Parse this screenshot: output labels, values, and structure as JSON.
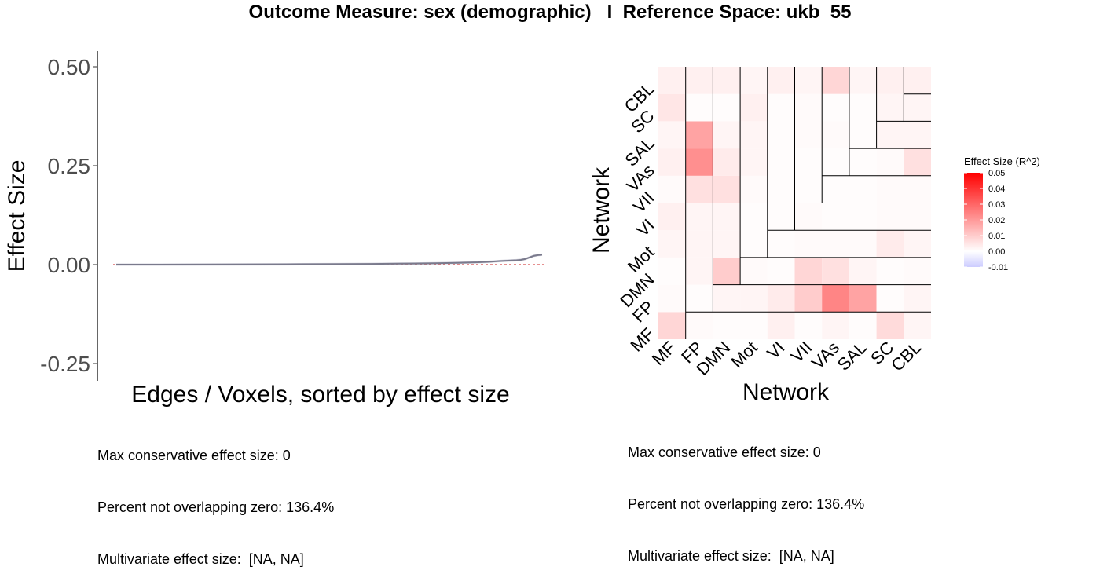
{
  "title": "Outcome Measure: sex (demographic)   I  Reference Space: ukb_55",
  "chart_data": [
    {
      "type": "line",
      "xlabel": "Edges / Voxels, sorted by effect size",
      "ylabel": "Effect Size",
      "ylim": [
        -0.28,
        0.53
      ],
      "yticks": [
        0.5,
        0.25,
        0.0,
        -0.25
      ],
      "ytick_labels": [
        "0.50",
        "0.25",
        "0.00",
        "-0.25"
      ],
      "reference_line": {
        "y": 0,
        "color": "#cc2222",
        "style": "dashed"
      },
      "series": [
        {
          "x": [
            0,
            0.1,
            0.2,
            0.3,
            0.4,
            0.5,
            0.6,
            0.7,
            0.75,
            0.8,
            0.85,
            0.88,
            0.9,
            0.92,
            0.94,
            0.95,
            0.96,
            0.97,
            0.98,
            0.99,
            1.0
          ],
          "values": [
            0,
            0,
            0.0002,
            0.0005,
            0.0008,
            0.0012,
            0.0018,
            0.0028,
            0.0035,
            0.0045,
            0.006,
            0.0075,
            0.009,
            0.01,
            0.011,
            0.012,
            0.014,
            0.018,
            0.022,
            0.024,
            0.025
          ],
          "band_halfwidth": 0.003,
          "color": "#7a7a8c"
        }
      ]
    },
    {
      "type": "heatmap",
      "xlabel": "Network",
      "ylabel": "Network",
      "x_categories": [
        "MF",
        "FP",
        "DMN",
        "Mot",
        "VI",
        "VII",
        "VAs",
        "SAL",
        "SC",
        "CBL"
      ],
      "y_categories": [
        "MF",
        "FP",
        "DMN",
        "Mot",
        "VI",
        "VII",
        "VAs",
        "SAL",
        "SC",
        "CBL"
      ],
      "values": [
        [
          0.008,
          0.001,
          0.0005,
          0.0005,
          0.003,
          0.0005,
          0.002,
          0.0005,
          0.007,
          0.002
        ],
        [
          0.001,
          0.0005,
          0.002,
          0.002,
          0.004,
          0.01,
          0.024,
          0.018,
          0.0005,
          0.002
        ],
        [
          0.0005,
          0.002,
          0.01,
          0.001,
          0.0005,
          0.008,
          0.006,
          0.002,
          0.0005,
          0.001
        ],
        [
          0.002,
          0.002,
          0.002,
          0.0005,
          0.0005,
          0.001,
          0.001,
          0.001,
          0.004,
          0.002
        ],
        [
          0.003,
          0.002,
          0.002,
          0.0005,
          0.0005,
          0.001,
          0.0005,
          0.0005,
          0.001,
          0.001
        ],
        [
          0.001,
          0.006,
          0.006,
          0.001,
          0.0005,
          0.0005,
          0.0005,
          0.0005,
          0.001,
          0.001
        ],
        [
          0.003,
          0.022,
          0.004,
          0.002,
          0.0005,
          0.0005,
          0.0005,
          0.0005,
          0.001,
          0.006
        ],
        [
          0.002,
          0.018,
          0.002,
          0.002,
          0.0005,
          0.001,
          0.001,
          0.0005,
          0.002,
          0.002
        ],
        [
          0.005,
          0.0005,
          0.0005,
          0.003,
          0.0005,
          0.001,
          0.0005,
          0.0005,
          0.002,
          0.002
        ],
        [
          0.003,
          0.003,
          0.003,
          0.002,
          0.003,
          0.002,
          0.008,
          0.002,
          0.003,
          0.003
        ]
      ],
      "legend": {
        "title": "Effect Size (R^2)",
        "ticks": [
          0.05,
          0.04,
          0.03,
          0.02,
          0.01,
          0.0,
          -0.01
        ],
        "tick_labels": [
          "0.05",
          "0.04",
          "0.03",
          "0.02",
          "0.01",
          "0.00",
          "-0.01"
        ],
        "range": [
          -0.01,
          0.05
        ],
        "color_high": "#ff0000",
        "color_mid": "#ffffff",
        "color_low": "#ccccff",
        "position": "right"
      }
    }
  ],
  "stats_left": {
    "line1": "Max conservative effect size: 0",
    "line2": "Percent not overlapping zero: 136.4%",
    "line3": "Multivariate effect size:  [NA, NA]"
  },
  "stats_right": {
    "line1": "Max conservative effect size: 0",
    "line2": "Percent not overlapping zero: 136.4%",
    "line3": "Multivariate effect size:  [NA, NA]"
  }
}
